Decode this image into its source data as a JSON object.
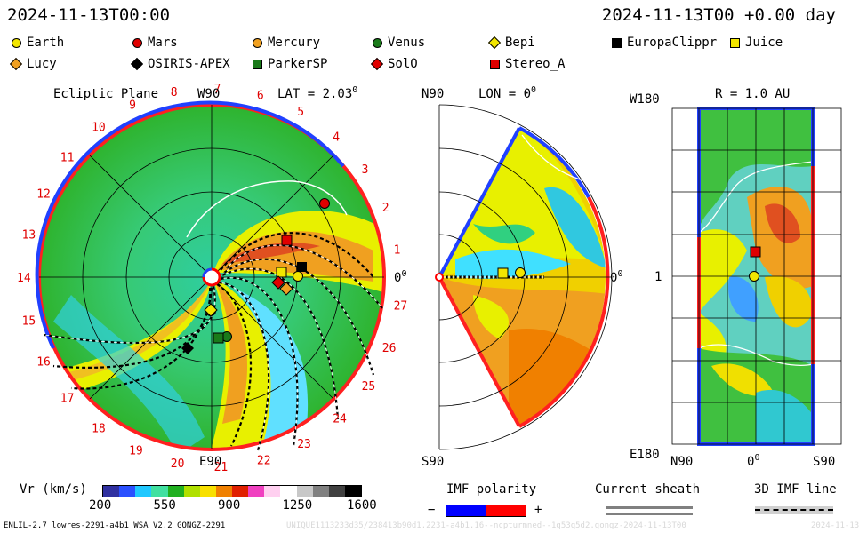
{
  "header": {
    "timestamp": "2024-11-13T00:00",
    "offset": "2024-11-13T00 +0.00 day"
  },
  "legend": [
    {
      "name": "Earth",
      "shape": "circle",
      "color": "#f2e600"
    },
    {
      "name": "Mars",
      "shape": "circle",
      "color": "#e00000"
    },
    {
      "name": "Mercury",
      "shape": "circle",
      "color": "#f0a020"
    },
    {
      "name": "Venus",
      "shape": "circle",
      "color": "#1a7a1a"
    },
    {
      "name": "Bepi",
      "shape": "diamond",
      "color": "#f2e600"
    },
    {
      "name": "EuropaClippr",
      "shape": "square",
      "color": "#000000"
    },
    {
      "name": "Juice",
      "shape": "square",
      "color": "#f2e600"
    },
    {
      "name": "Lucy",
      "shape": "diamond",
      "color": "#f0a020"
    },
    {
      "name": "OSIRIS-APEX",
      "shape": "diamond",
      "color": "#000000"
    },
    {
      "name": "ParkerSP",
      "shape": "square",
      "color": "#1a7a1a"
    },
    {
      "name": "SolO",
      "shape": "diamond",
      "color": "#e00000"
    },
    {
      "name": "Stereo_A",
      "shape": "square",
      "color": "#e00000"
    }
  ],
  "ecliptic": {
    "title": "Ecliptic Plane",
    "lat_label": "LAT = 2.03",
    "lat_sup": "0",
    "w90": "W90",
    "e90": "E90",
    "zero": "0",
    "zero_sup": "0",
    "carrington_ticks": [
      "1",
      "2",
      "3",
      "4",
      "5",
      "6",
      "7",
      "8",
      "9",
      "10",
      "11",
      "12",
      "13",
      "14",
      "15",
      "16",
      "17",
      "18",
      "19",
      "20",
      "21",
      "22",
      "23",
      "24",
      "25",
      "26",
      "27"
    ]
  },
  "meridional": {
    "n90": "N90",
    "s90": "S90",
    "lon_label": "LON = 0",
    "lon_sup": "0",
    "zero": "0",
    "zero_sup": "0"
  },
  "sphere": {
    "r_label": "R = 1.0 AU",
    "w180": "W180",
    "e180": "E180",
    "y_mid": "1",
    "n90": "N90",
    "x_zero": "0",
    "x_zero_sup": "0",
    "s90": "S90"
  },
  "colorbar": {
    "label": "Vr (km/s)",
    "ticks": [
      "200",
      "550",
      "900",
      "1250",
      "1600"
    ],
    "colors": [
      "#3030a0",
      "#2a50ff",
      "#20c8ff",
      "#40e0a0",
      "#20b020",
      "#b0e000",
      "#f8e000",
      "#f08000",
      "#e02000",
      "#f040c0",
      "#ffd0f0",
      "#ffffff",
      "#c8c8c8",
      "#808080",
      "#404040",
      "#000000"
    ]
  },
  "imf": {
    "label": "IMF polarity",
    "minus": "−",
    "plus": "+",
    "neg_color": "#0000ff",
    "pos_color": "#ff0000"
  },
  "sheath": {
    "label": "Current sheath"
  },
  "imfline": {
    "label": "3D IMF line"
  },
  "footer": {
    "model": "ENLIL-2.7 lowres-2291-a4b1 WSA_V2.2 GONGZ-2291",
    "run": "UNIQUE1113233d35/238413b90d1.2231-a4b1.16--ncpturmned--1g53q5d2.gongz-2024-11-13T00",
    "date": "2024-11-13"
  }
}
